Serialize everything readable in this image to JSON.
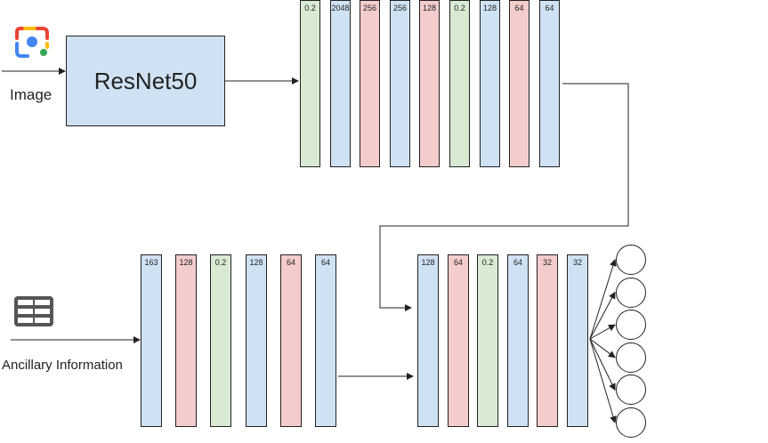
{
  "resnet": {
    "label": "ResNet50"
  },
  "inputs": {
    "image_label": "Image",
    "ancillary_label": "Ancillary Information",
    "image_icon": "google-lens-camera-icon",
    "ancillary_icon": "table-icon"
  },
  "colors": {
    "blue": "#cfe2f3",
    "red": "#f4cccc",
    "green": "#d9ead3",
    "stroke": "#222222"
  },
  "stacks": {
    "image_head": [
      {
        "label": "0.2",
        "color": "green"
      },
      {
        "label": "2048",
        "color": "blue"
      },
      {
        "label": "256",
        "color": "red"
      },
      {
        "label": "256",
        "color": "blue"
      },
      {
        "label": "128",
        "color": "red"
      },
      {
        "label": "0.2",
        "color": "green"
      },
      {
        "label": "128",
        "color": "blue"
      },
      {
        "label": "64",
        "color": "red"
      },
      {
        "label": "64",
        "color": "blue"
      }
    ],
    "ancillary": [
      {
        "label": "163",
        "color": "blue"
      },
      {
        "label": "128",
        "color": "red"
      },
      {
        "label": "0.2",
        "color": "green"
      },
      {
        "label": "128",
        "color": "blue"
      },
      {
        "label": "64",
        "color": "red"
      },
      {
        "label": "64",
        "color": "blue"
      }
    ],
    "fusion": [
      {
        "label": "128",
        "color": "blue"
      },
      {
        "label": "64",
        "color": "red"
      },
      {
        "label": "0.2",
        "color": "green"
      },
      {
        "label": "64",
        "color": "blue"
      },
      {
        "label": "32",
        "color": "red"
      },
      {
        "label": "32",
        "color": "blue"
      }
    ]
  },
  "outputs": {
    "count": 6
  }
}
